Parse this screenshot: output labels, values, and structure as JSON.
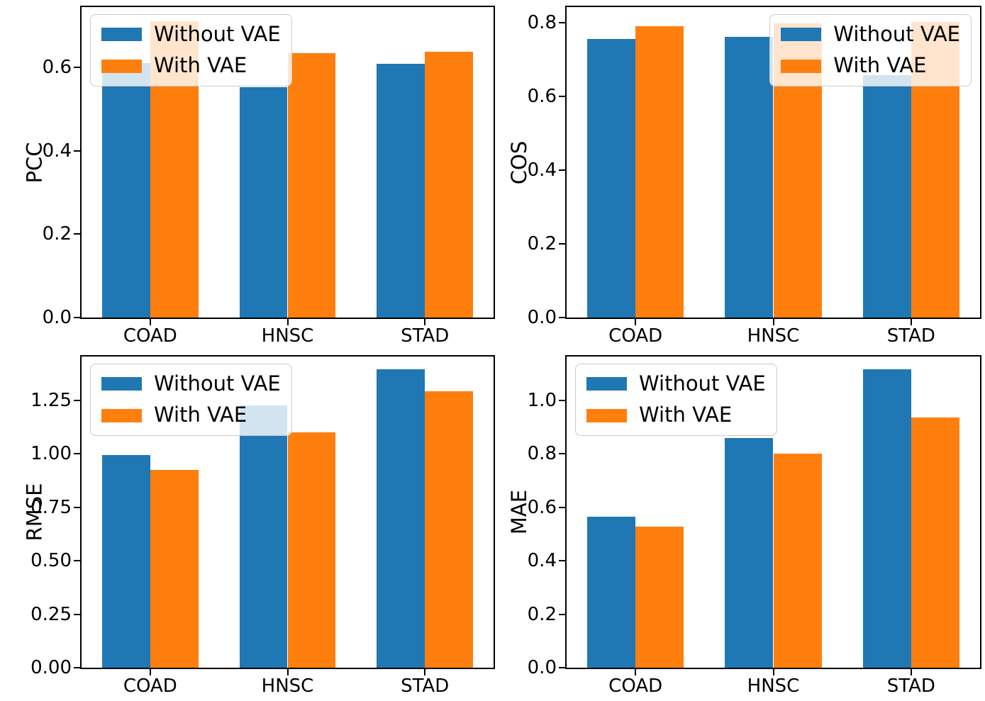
{
  "figure": {
    "background": "#ffffff",
    "legend_labels": [
      "Without VAE",
      "With VAE"
    ],
    "series_colors": [
      "#1f77b4",
      "#ff7f0e"
    ],
    "spine_color": "#000000"
  },
  "chart_data": [
    {
      "type": "bar",
      "ylabel": "PCC",
      "categories": [
        "COAD",
        "HNSC",
        "STAD"
      ],
      "series": [
        {
          "name": "Without VAE",
          "values": [
            0.611,
            0.553,
            0.609
          ]
        },
        {
          "name": "With VAE",
          "values": [
            0.711,
            0.634,
            0.638
          ]
        }
      ],
      "ylim": [
        0,
        0.745
      ],
      "ytick_labels": [
        "0.0",
        "0.2",
        "0.4",
        "0.6"
      ],
      "ytick_values": [
        0.0,
        0.2,
        0.4,
        0.6
      ],
      "bar_width_units": 0.35,
      "grid": false,
      "legend_position": "upper-left"
    },
    {
      "type": "bar",
      "ylabel": "COS",
      "categories": [
        "COAD",
        "HNSC",
        "STAD"
      ],
      "series": [
        {
          "name": "Without VAE",
          "values": [
            0.757,
            0.762,
            0.659
          ]
        },
        {
          "name": "With VAE",
          "values": [
            0.792,
            0.799,
            0.803
          ]
        }
      ],
      "ylim": [
        0,
        0.843
      ],
      "ytick_labels": [
        "0.0",
        "0.2",
        "0.4",
        "0.6",
        "0.8"
      ],
      "ytick_values": [
        0.0,
        0.2,
        0.4,
        0.6,
        0.8
      ],
      "bar_width_units": 0.35,
      "grid": false,
      "legend_position": "upper-right"
    },
    {
      "type": "bar",
      "ylabel": "RMSE",
      "categories": [
        "COAD",
        "HNSC",
        "STAD"
      ],
      "series": [
        {
          "name": "Without VAE",
          "values": [
            0.996,
            1.226,
            1.394
          ]
        },
        {
          "name": "With VAE",
          "values": [
            0.924,
            1.101,
            1.291
          ]
        }
      ],
      "ylim": [
        0,
        1.455
      ],
      "ytick_labels": [
        "0.00",
        "0.25",
        "0.50",
        "0.75",
        "1.00",
        "1.25"
      ],
      "ytick_values": [
        0.0,
        0.25,
        0.5,
        0.75,
        1.0,
        1.25
      ],
      "bar_width_units": 0.35,
      "grid": false,
      "legend_position": "upper-left"
    },
    {
      "type": "bar",
      "ylabel": "MAE",
      "categories": [
        "COAD",
        "HNSC",
        "STAD"
      ],
      "series": [
        {
          "name": "Without VAE",
          "values": [
            0.564,
            0.858,
            1.115
          ]
        },
        {
          "name": "With VAE",
          "values": [
            0.527,
            0.8,
            0.936
          ]
        }
      ],
      "ylim": [
        0,
        1.164
      ],
      "ytick_labels": [
        "0.0",
        "0.2",
        "0.4",
        "0.6",
        "0.8",
        "1.0"
      ],
      "ytick_values": [
        0.0,
        0.2,
        0.4,
        0.6,
        0.8,
        1.0
      ],
      "bar_width_units": 0.35,
      "grid": false,
      "legend_position": "upper-left"
    }
  ]
}
